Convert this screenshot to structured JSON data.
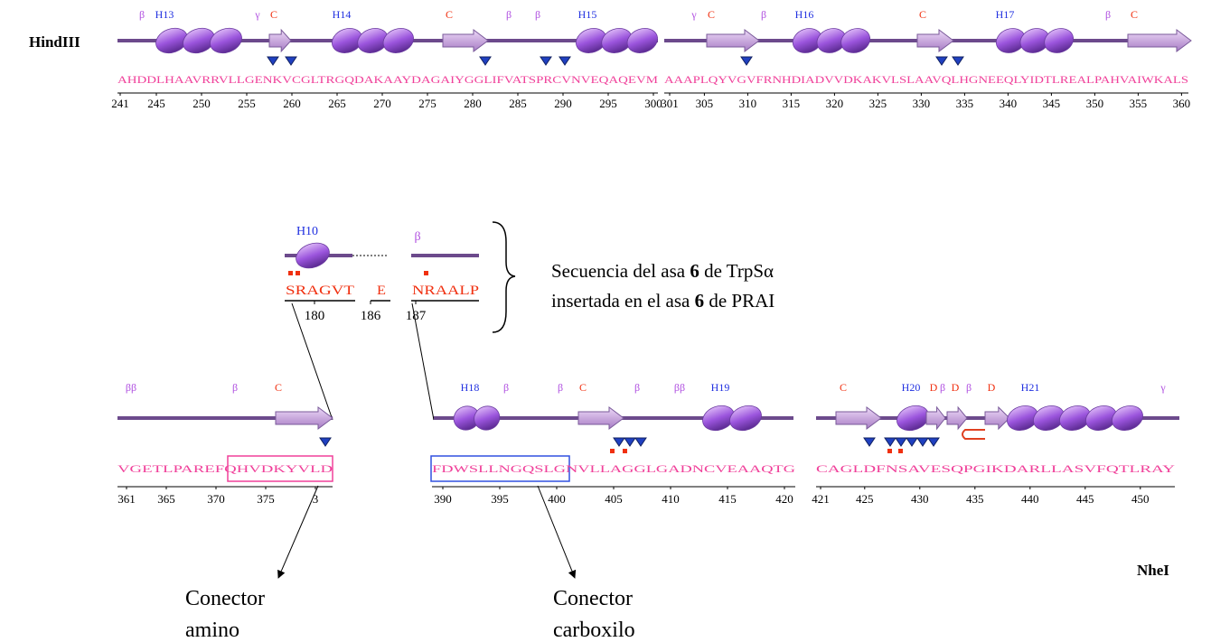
{
  "labels": {
    "hindiii": "HindIII",
    "nhei": "NheI"
  },
  "panels": [
    {
      "features": [
        "β",
        "H13",
        "γ",
        "C",
        "H14",
        "C",
        "β",
        "β",
        "H15"
      ],
      "sequence": "AHDDLHAAVRRVLLGENKVCGLTRGQDAKAAYDAGAIYGGLIFVATSPRCVNVEQAQEVM",
      "ticks": [
        241,
        245,
        250,
        255,
        260,
        265,
        270,
        275,
        280,
        285,
        290,
        295,
        300
      ]
    },
    {
      "features": [
        "γ",
        "C",
        "β",
        "H16",
        "C",
        "H17",
        "β",
        "C"
      ],
      "sequence": "AAAPLQYVGVFRNHDIADVVDKAKVLSLAAVQLHGNEEQLYIDTLREALPAHVAIWKALS",
      "ticks": [
        301,
        305,
        310,
        315,
        320,
        325,
        330,
        335,
        340,
        345,
        350,
        355,
        360
      ]
    },
    {
      "features": [
        "ββ",
        "β",
        "C"
      ],
      "sequence": "VGETLPAREFQHVDKYVLD",
      "ticks": [
        361,
        365,
        370,
        375,
        {
          "value": 380,
          "label": "3"
        }
      ]
    },
    {
      "features": [
        "H18",
        "β",
        "β",
        "C",
        "β",
        "ββ",
        "H19"
      ],
      "sequence": "FDWSLLNGQSLGNVLLAGGLGADNCVEAAQTG",
      "ticks": [
        390,
        395,
        400,
        405,
        410,
        415,
        420
      ]
    },
    {
      "features": [
        "C",
        "H20",
        "D",
        "β",
        "D",
        "β",
        "D",
        "H21",
        "γ"
      ],
      "sequence": "CAGLDFNSAVESQPGIKDARLLASVFQTLRAY",
      "ticks": [
        421,
        425,
        430,
        435,
        440,
        445,
        450
      ]
    }
  ],
  "insert": {
    "features": [
      "H10",
      "β"
    ],
    "segments": [
      "SRAGVT",
      "E",
      "NRAALP"
    ],
    "ticks": [
      180,
      186,
      187
    ]
  },
  "note": {
    "lines": [
      [
        "Secuencia del asa ",
        "6",
        " de TrpSα"
      ],
      [
        "insertada en el asa ",
        "6",
        " de PRAI"
      ]
    ]
  },
  "connectors": [
    [
      "Conector",
      "amino"
    ],
    [
      "Conector",
      "carboxilo"
    ]
  ]
}
